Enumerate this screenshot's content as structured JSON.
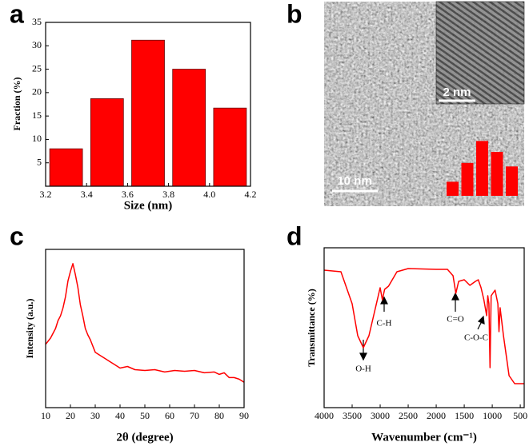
{
  "chart_data": [
    {
      "type": "histogram",
      "label": "a",
      "xlabel": "Size (nm)",
      "ylabel": "Fraction (%)",
      "bins": [
        3.2,
        3.4,
        3.6,
        3.8,
        4.0,
        4.2
      ],
      "values": [
        8,
        18.7,
        31.2,
        25,
        16.7
      ],
      "color": "#ff0000",
      "xlim": [
        3.2,
        4.2
      ],
      "xticks": [
        3.2,
        3.4,
        3.6,
        3.8,
        {
          "value": 4,
          "label": "4.0"
        },
        4.2
      ],
      "ylim": [
        0,
        35
      ],
      "yticks": [
        5,
        10,
        15,
        20,
        25,
        30,
        35
      ]
    },
    {
      "type": "image",
      "label": "b",
      "scale_bars": [
        "2 nm",
        "10 nm"
      ]
    },
    {
      "type": "line",
      "label": "c",
      "xlabel": "2θ (degree)",
      "ylabel": "Intensity  (a.u.)",
      "color": "#ff0000",
      "x": [
        10,
        12,
        14,
        15,
        16,
        17,
        18,
        19,
        20,
        21,
        22,
        23,
        24,
        25,
        26,
        27,
        28,
        30,
        32,
        34,
        36,
        38,
        40,
        43,
        46,
        50,
        54,
        58,
        62,
        66,
        70,
        74,
        78,
        80,
        82,
        84,
        86,
        88,
        90
      ],
      "values": [
        40,
        44,
        50,
        55,
        58,
        63,
        70,
        80,
        86,
        91,
        84,
        76,
        65,
        58,
        50,
        46,
        43,
        35,
        33,
        31,
        29,
        27,
        25,
        26,
        24,
        23.5,
        24,
        22.5,
        23.5,
        23,
        23.5,
        22,
        22.5,
        21,
        22,
        19,
        19,
        18,
        16
      ],
      "xlim": [
        10,
        90
      ],
      "xticks": [
        10,
        20,
        30,
        40,
        50,
        60,
        70,
        80,
        90
      ],
      "ylim": [
        0,
        100
      ]
    },
    {
      "type": "line",
      "label": "d",
      "xlabel": "Wavenumber (cm⁻¹)",
      "ylabel": "Transmittance (%)",
      "color": "#ff0000",
      "x": [
        4000,
        3700,
        3500,
        3400,
        3300,
        3200,
        3100,
        3000,
        2960,
        2920,
        2850,
        2700,
        2500,
        2000,
        1800,
        1700,
        1650,
        1600,
        1500,
        1400,
        1300,
        1250,
        1200,
        1150,
        1100,
        1080,
        1060,
        1040,
        1020,
        950,
        900,
        880,
        860,
        800,
        700,
        600,
        500,
        430
      ],
      "values": [
        86,
        85,
        65,
        45,
        37.5,
        45,
        60,
        75,
        67.5,
        74,
        76,
        85,
        87,
        86.5,
        86.5,
        82.5,
        71.5,
        79,
        80,
        76.5,
        79,
        80,
        75,
        67.5,
        57.5,
        70,
        65,
        25,
        70,
        73.5,
        65,
        47.5,
        62.5,
        45,
        20,
        15,
        15,
        15
      ],
      "xlim": [
        4000,
        430
      ],
      "xticks": [
        4000,
        3500,
        3000,
        2500,
        2000,
        1500,
        1000,
        500
      ],
      "ylim": [
        0,
        100
      ],
      "annotations": [
        "O-H",
        "C-H",
        "C=O",
        "C-O-C"
      ]
    }
  ]
}
